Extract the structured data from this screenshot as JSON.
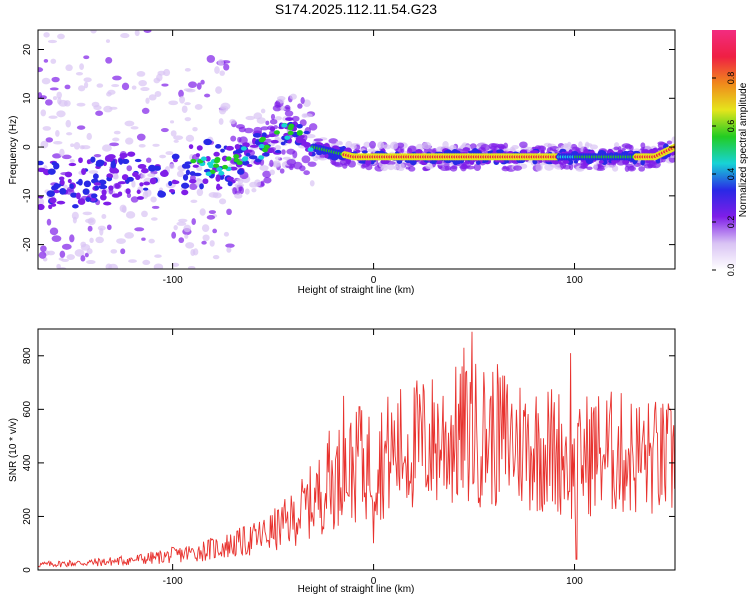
{
  "title": "S174.2025.112.11.54.G23",
  "chart_data": [
    {
      "type": "heatmap",
      "xlabel": "Height of straight line (km)",
      "ylabel": "Frequency (Hz)",
      "xlim": [
        -167,
        150
      ],
      "ylim": [
        -25,
        24
      ],
      "xticks": [
        -100,
        0,
        100
      ],
      "yticks": [
        -20,
        -10,
        0,
        10,
        20
      ],
      "grid": false,
      "colorbar": {
        "label": "Normalized spectral amplitude",
        "range": [
          0,
          1
        ],
        "ticks": [
          0.0,
          0.2,
          0.4,
          0.6,
          0.8
        ],
        "colors": [
          "#ffffff",
          "#d9c3f4",
          "#7f1ee8",
          "#2929e6",
          "#17d3d6",
          "#22cc22",
          "#e5e51c",
          "#f0881c",
          "#ef1f43",
          "#f22c80"
        ]
      },
      "ridge": {
        "description_values": "peak frequency versus height",
        "x": [
          -160,
          -140,
          -120,
          -100,
          -85,
          -70,
          -60,
          -50,
          -40,
          -35,
          -30,
          -20,
          -10,
          0,
          20,
          40,
          60,
          80,
          95,
          100,
          120,
          140,
          150
        ],
        "y": [
          -8,
          -7,
          -6,
          -5,
          -4,
          -3,
          -1,
          1,
          4,
          2,
          0,
          -1,
          -2,
          -2,
          -2,
          -2,
          -2,
          -2,
          -2,
          -2,
          -2,
          -2,
          0
        ]
      }
    },
    {
      "type": "line",
      "xlabel": "Height of straight line (km)",
      "ylabel": "SNR (10 * v/v)",
      "xlim": [
        -167,
        150
      ],
      "ylim": [
        0,
        900
      ],
      "xticks": [
        -100,
        0,
        100
      ],
      "yticks": [
        0,
        200,
        400,
        600,
        800
      ],
      "grid": false,
      "series": [
        {
          "color": "#e8322e",
          "x": [
            -167,
            -160,
            -150,
            -140,
            -130,
            -120,
            -110,
            -100,
            -90,
            -80,
            -70,
            -60,
            -50,
            -40,
            -35,
            -30,
            -25,
            -20,
            -15,
            -10,
            -5,
            0,
            5,
            10,
            15,
            20,
            25,
            30,
            35,
            40,
            45,
            50,
            55,
            60,
            65,
            70,
            75,
            80,
            85,
            90,
            95,
            100,
            105,
            110,
            115,
            120,
            125,
            130,
            135,
            140,
            145,
            150
          ],
          "values": [
            20,
            22,
            25,
            28,
            32,
            38,
            45,
            55,
            65,
            80,
            95,
            115,
            145,
            190,
            230,
            260,
            300,
            330,
            370,
            380,
            390,
            400,
            420,
            440,
            455,
            465,
            475,
            480,
            490,
            495,
            500,
            510,
            505,
            500,
            495,
            480,
            470,
            460,
            455,
            450,
            440,
            360,
            430,
            440,
            440,
            435,
            430,
            425,
            420,
            415,
            410,
            405
          ],
          "spikes": [
            {
              "x": -22,
              "y": 520
            },
            {
              "x": -15,
              "y": 650
            },
            {
              "x": -7,
              "y": 610
            },
            {
              "x": 0,
              "y": 100
            },
            {
              "x": 45,
              "y": 830
            },
            {
              "x": 49,
              "y": 890
            },
            {
              "x": 98,
              "y": 810
            },
            {
              "x": 101,
              "y": 850
            },
            {
              "x": 101,
              "y": 40
            }
          ]
        }
      ]
    }
  ]
}
